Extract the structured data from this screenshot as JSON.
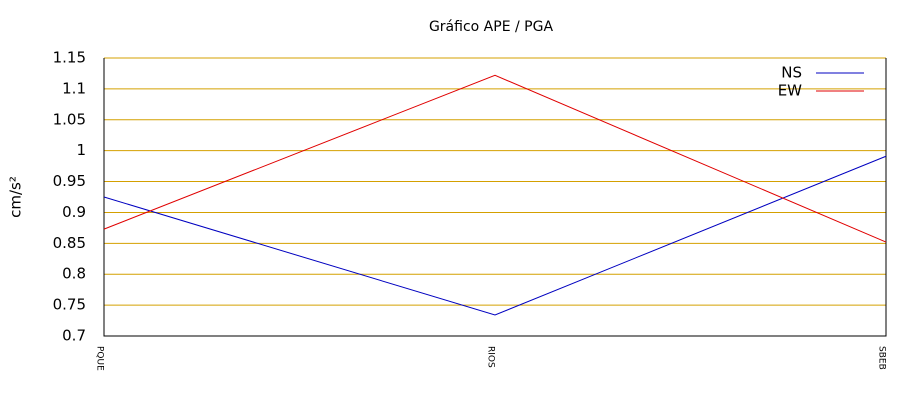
{
  "chart_data": {
    "type": "line",
    "title": "Gráfico  APE / PGA",
    "y_label": "cm/s²",
    "categories": [
      "PQUE",
      "RIOS",
      "SBEB"
    ],
    "series": [
      {
        "name": "NS",
        "color": "#0000c0",
        "values": [
          0.925,
          0.734,
          0.991
        ]
      },
      {
        "name": "EW",
        "color": "#e00000",
        "values": [
          0.873,
          1.122,
          0.852
        ]
      }
    ],
    "ylim": [
      0.7,
      1.15
    ],
    "yticks": [
      0.7,
      0.75,
      0.8,
      0.85,
      0.9,
      0.95,
      1,
      1.05,
      1.1,
      1.15
    ],
    "grid": true,
    "grid_color": "#d4a000",
    "legend": "upper-right"
  }
}
